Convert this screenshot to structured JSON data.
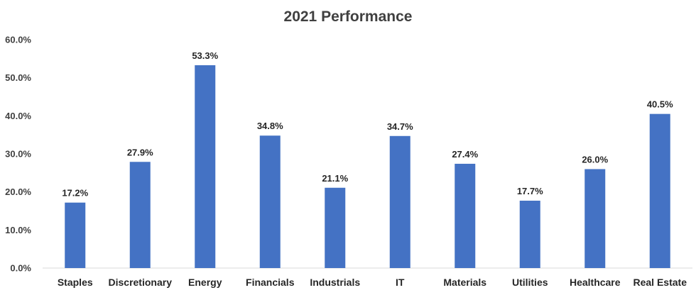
{
  "chart_data": {
    "type": "bar",
    "title": "2021 Performance",
    "categories": [
      "Staples",
      "Discretionary",
      "Energy",
      "Financials",
      "Industrials",
      "IT",
      "Materials",
      "Utilities",
      "Healthcare",
      "Real Estate"
    ],
    "values": [
      17.2,
      27.9,
      53.3,
      34.8,
      21.1,
      34.7,
      27.4,
      17.7,
      26.0,
      40.5
    ],
    "data_labels": [
      "17.2%",
      "27.9%",
      "53.3%",
      "34.8%",
      "21.1%",
      "34.7%",
      "27.4%",
      "17.7%",
      "26.0%",
      "40.5%"
    ],
    "yticks": [
      "0.0%",
      "10.0%",
      "20.0%",
      "30.0%",
      "40.0%",
      "50.0%",
      "60.0%"
    ],
    "ylim": [
      0,
      60
    ],
    "grid": false,
    "legend": "none",
    "bar_color": "#4472c4"
  }
}
